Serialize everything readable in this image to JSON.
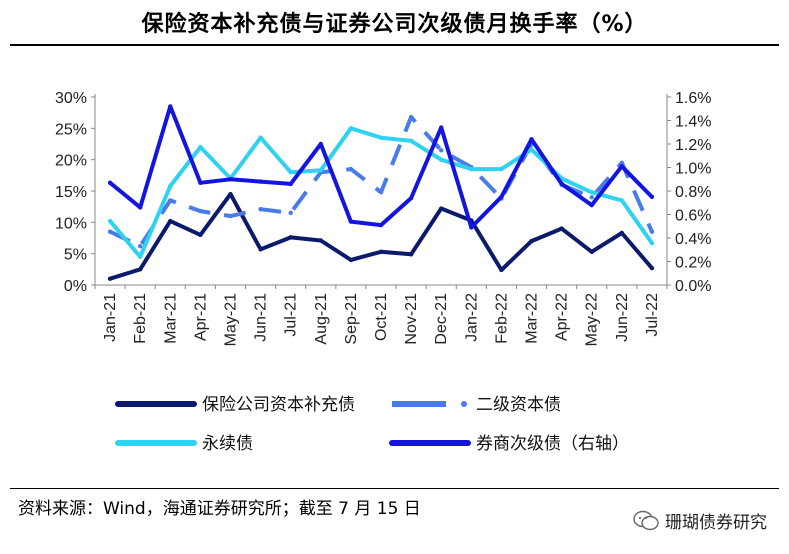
{
  "header": {
    "title": "保险资本补充债与证券公司次级债月换手率（%）"
  },
  "footer": {
    "source": "资料来源：Wind，海通证券研究所；截至 7 月 15 日",
    "watermark": "珊瑚债券研究"
  },
  "chart_data": {
    "type": "line",
    "x": [
      "Jan-21",
      "Feb-21",
      "Mar-21",
      "Apr-21",
      "May-21",
      "Jun-21",
      "Jul-21",
      "Aug-21",
      "Sep-21",
      "Oct-21",
      "Nov-21",
      "Dec-21",
      "Jan-22",
      "Feb-22",
      "Mar-22",
      "Apr-22",
      "May-22",
      "Jun-22",
      "Jul-22"
    ],
    "y_left": {
      "ticks": [
        "0%",
        "5%",
        "10%",
        "15%",
        "20%",
        "25%",
        "30%"
      ],
      "lim": [
        0,
        30
      ]
    },
    "y_right": {
      "ticks": [
        "0.0%",
        "0.2%",
        "0.4%",
        "0.6%",
        "0.8%",
        "1.0%",
        "1.2%",
        "1.4%",
        "1.6%"
      ],
      "lim": [
        0,
        1.6
      ]
    },
    "series": [
      {
        "name": "保险公司资本补充债",
        "axis": "left",
        "color": "#0b1a6b",
        "style": "solid",
        "values": [
          1.0,
          2.5,
          10.2,
          8.0,
          14.5,
          5.7,
          7.6,
          7.1,
          4.0,
          5.3,
          4.9,
          12.2,
          10.3,
          2.4,
          7.0,
          9.0,
          5.3,
          8.3,
          2.7
        ]
      },
      {
        "name": "二级资本债",
        "axis": "left",
        "color": "#4a7bea",
        "style": "dashed",
        "values": [
          8.5,
          6.2,
          13.5,
          11.8,
          11.0,
          12.1,
          11.5,
          18.0,
          18.5,
          14.8,
          26.8,
          21.5,
          18.8,
          13.8,
          22.5,
          16.0,
          14.0,
          19.5,
          8.5
        ]
      },
      {
        "name": "永续债",
        "axis": "left",
        "color": "#2fd2f0",
        "style": "solid",
        "values": [
          10.2,
          4.5,
          15.8,
          22.0,
          17.0,
          23.5,
          18.0,
          18.3,
          25.0,
          23.5,
          23.0,
          20.0,
          18.5,
          18.5,
          21.6,
          17.0,
          14.8,
          13.5,
          6.7
        ]
      },
      {
        "name": "券商次级债（右轴）",
        "axis": "right",
        "color": "#1414e0",
        "style": "solid",
        "values": [
          0.87,
          0.66,
          1.52,
          0.87,
          0.9,
          0.88,
          0.86,
          1.2,
          0.54,
          0.51,
          0.74,
          1.34,
          0.49,
          0.75,
          1.24,
          0.86,
          0.68,
          1.01,
          0.75
        ]
      }
    ]
  }
}
